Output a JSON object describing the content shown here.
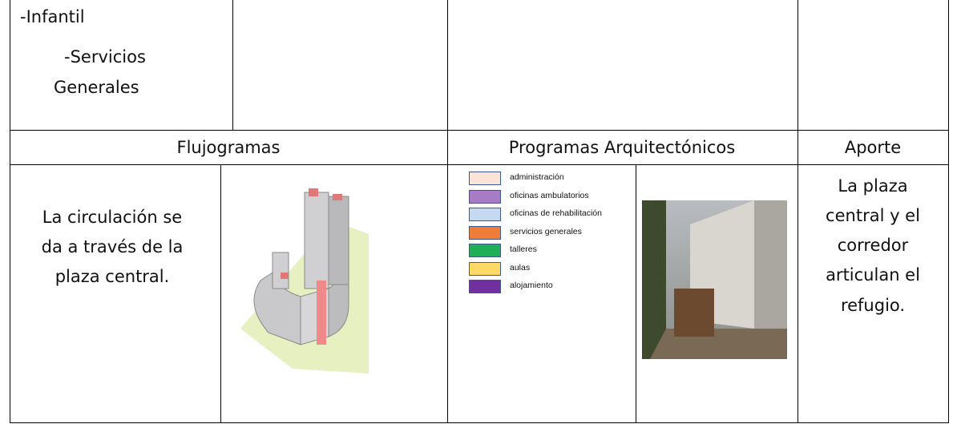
{
  "table": {
    "top_row": {
      "lines": [
        "-Infantil",
        "-Servicios",
        "Generales"
      ]
    },
    "headers": [
      "Flujogramas",
      "Programas Arquitectónicos",
      "Aporte"
    ],
    "flujograma_text": [
      "La circulación se",
      "da a través de la",
      "plaza central."
    ],
    "legend": [
      {
        "label": "administración",
        "color": "#fbe3d8"
      },
      {
        "label": "oficinas ambulatorios",
        "color": "#a67cc6"
      },
      {
        "label": "oficinas de rehabilitación",
        "color": "#c5daf0"
      },
      {
        "label": "servicios generales",
        "color": "#ef7d3a"
      },
      {
        "label": "talleres",
        "color": "#1faf57"
      },
      {
        "label": "aulas",
        "color": "#ffd966"
      },
      {
        "label": "alojamiento",
        "color": "#7030a0"
      }
    ],
    "aporte_text": [
      "La plaza",
      "central y el",
      "corredor",
      "articulan el",
      "refugio."
    ]
  }
}
